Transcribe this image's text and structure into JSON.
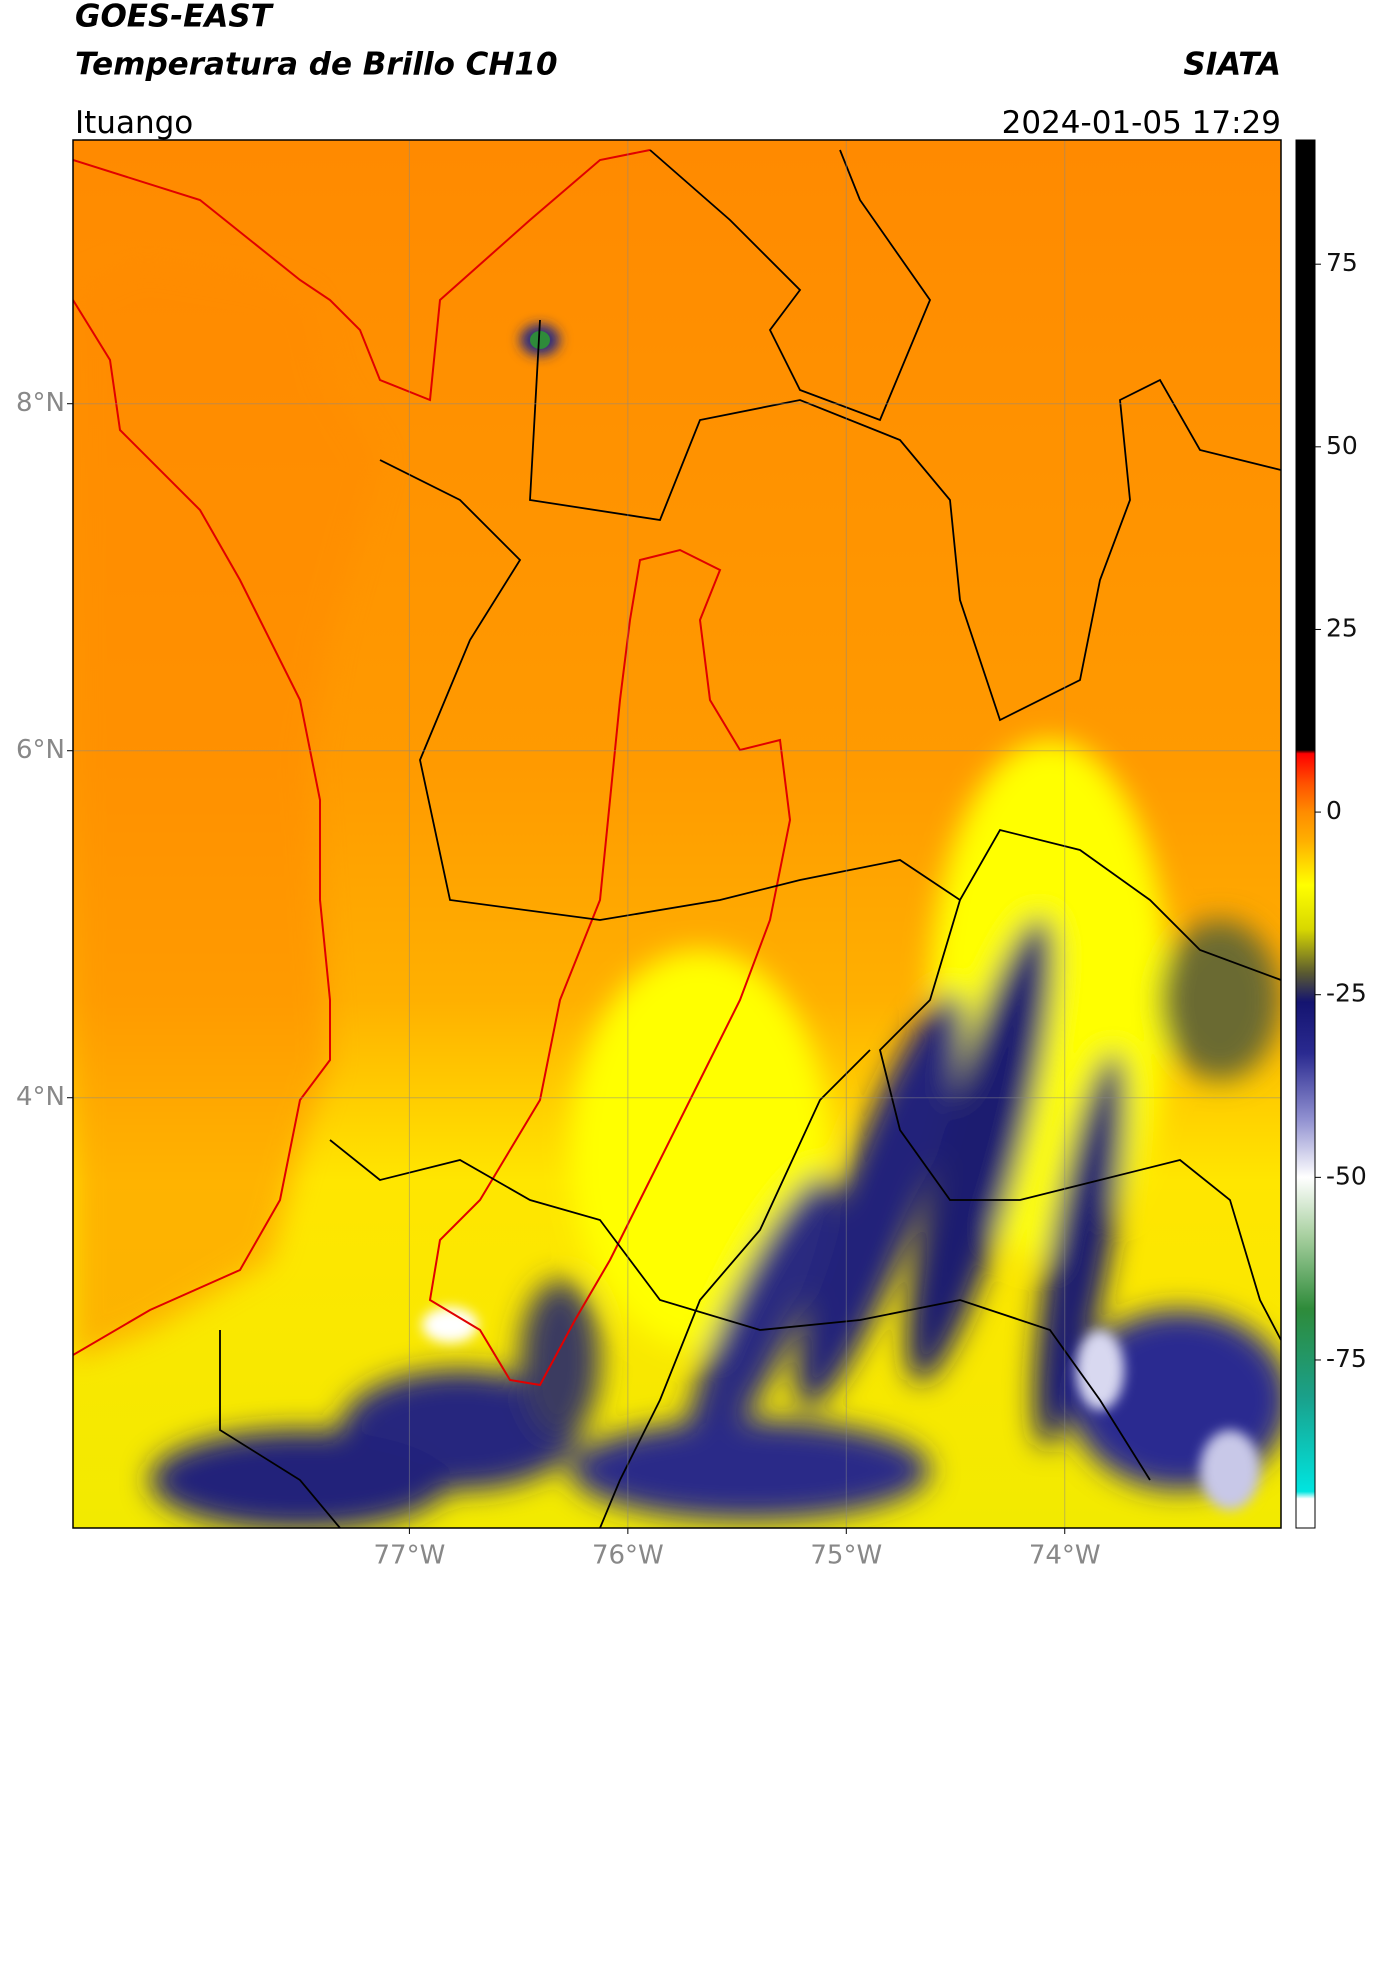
{
  "header": {
    "title": "GOES-EAST",
    "subtitle": "Temperatura de Brillo CH10",
    "source": "SIATA",
    "location": "Ituango",
    "datetime": "2024-01-05 17:29"
  },
  "map": {
    "xlim": [
      -78.54,
      -73.01
    ],
    "ylim": [
      1.52,
      9.52
    ],
    "xticks": [
      {
        "value": -77,
        "label": "77°W"
      },
      {
        "value": -76,
        "label": "76°W"
      },
      {
        "value": -75,
        "label": "75°W"
      },
      {
        "value": -74,
        "label": "74°W"
      }
    ],
    "yticks": [
      {
        "value": 8,
        "label": "8°N"
      },
      {
        "value": 6,
        "label": "6°N"
      },
      {
        "value": 4,
        "label": "4°N"
      }
    ]
  },
  "colorbar": {
    "lim": [
      -98,
      92
    ],
    "ticks": [
      75,
      50,
      25,
      0,
      -25,
      -50,
      -75
    ],
    "stops": [
      {
        "value": -98,
        "color": "#ffffff"
      },
      {
        "value": -94,
        "color": "#ffffff"
      },
      {
        "value": -93,
        "color": "#00e5e0"
      },
      {
        "value": -80,
        "color": "#1aa08a"
      },
      {
        "value": -68,
        "color": "#2e8b3a"
      },
      {
        "value": -58,
        "color": "#a8d0a0"
      },
      {
        "value": -50,
        "color": "#ffffff"
      },
      {
        "value": -42,
        "color": "#9090d0"
      },
      {
        "value": -33,
        "color": "#2a2a90"
      },
      {
        "value": -26,
        "color": "#141470"
      },
      {
        "value": -22,
        "color": "#5a5a30"
      },
      {
        "value": -16,
        "color": "#d8d800"
      },
      {
        "value": -10,
        "color": "#ffff00"
      },
      {
        "value": -4,
        "color": "#ffb000"
      },
      {
        "value": 0,
        "color": "#ff8c00"
      },
      {
        "value": 4,
        "color": "#ff5000"
      },
      {
        "value": 8,
        "color": "#ff0000"
      },
      {
        "value": 8.5,
        "color": "#000000"
      },
      {
        "value": 92,
        "color": "#000000"
      }
    ]
  }
}
